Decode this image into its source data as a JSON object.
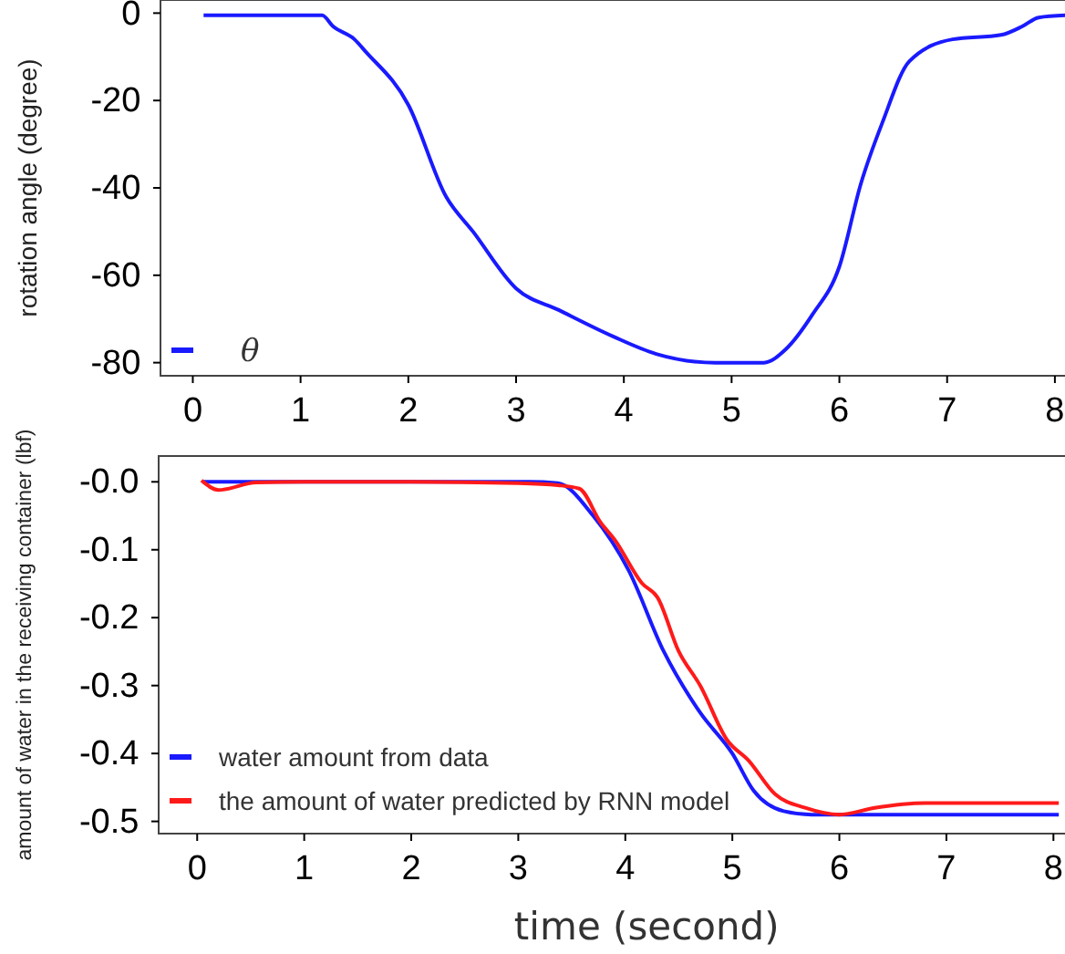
{
  "chart_data": [
    {
      "type": "line",
      "ylabel": "rotation angle (degree)",
      "xlim": [
        -0.3,
        8.5
      ],
      "ylim": [
        -83,
        3
      ],
      "xticks": [
        0,
        1,
        2,
        3,
        4,
        5,
        6,
        7,
        8
      ],
      "yticks": [
        0,
        -20,
        -40,
        -60,
        -80
      ],
      "legend": "bottom left",
      "grid": false,
      "series": [
        {
          "name": "θ",
          "color": "#1a1aff",
          "x": [
            0.1,
            1.2,
            1.3,
            1.5,
            1.6,
            2.0,
            2.35,
            2.6,
            3.0,
            3.4,
            3.9,
            4.3,
            4.85,
            5.3,
            5.5,
            5.75,
            6.0,
            6.2,
            6.4,
            6.65,
            7.05,
            7.5,
            7.7,
            7.85,
            8.1
          ],
          "values": [
            -0.5,
            -0.5,
            -3,
            -6,
            -8.7,
            -21,
            -42,
            -50,
            -63,
            -68,
            -74,
            -78,
            -80,
            -80,
            -77,
            -69,
            -58,
            -39,
            -25,
            -11,
            -6,
            -5,
            -3,
            -1,
            -0.5
          ]
        }
      ]
    },
    {
      "type": "line",
      "ylabel": "amount of water in the receiving container (lbf)",
      "xlabel": "time (second)",
      "xlim": [
        -0.36,
        8.5
      ],
      "ylim": [
        -0.518,
        0.038
      ],
      "xticks": [
        0,
        1,
        2,
        3,
        4,
        5,
        6,
        7,
        8
      ],
      "yticks": [
        {
          "value": 0,
          "label": "-0.0"
        },
        -0.1,
        -0.2,
        -0.3,
        -0.4,
        -0.5
      ],
      "legend": "bottom left",
      "grid": false,
      "series": [
        {
          "name": "water amount from data",
          "color": "#1a1aff",
          "x": [
            0.05,
            1.0,
            2.0,
            3.1,
            3.37,
            3.7,
            4.03,
            4.36,
            4.7,
            5.0,
            5.2,
            5.48,
            5.74,
            7.0,
            8.05
          ],
          "values": [
            0,
            0,
            0,
            0,
            -0.002,
            -0.05,
            -0.13,
            -0.25,
            -0.34,
            -0.4,
            -0.455,
            -0.485,
            -0.49,
            -0.49,
            -0.49
          ]
        },
        {
          "name": "the amount of water predicted by RNN model",
          "color": "#ff1a1a",
          "x": [
            0.04,
            0.2,
            0.55,
            1.0,
            2.0,
            3.0,
            3.37,
            3.57,
            3.77,
            3.9,
            4.16,
            4.3,
            4.5,
            4.7,
            4.95,
            5.15,
            5.4,
            5.68,
            6.0,
            6.33,
            6.8,
            8.05
          ],
          "values": [
            0.002,
            -0.012,
            -0.001,
            0,
            0,
            -0.002,
            -0.005,
            -0.01,
            -0.06,
            -0.085,
            -0.15,
            -0.17,
            -0.25,
            -0.3,
            -0.38,
            -0.41,
            -0.46,
            -0.48,
            -0.49,
            -0.48,
            -0.473,
            -0.473
          ]
        }
      ]
    }
  ]
}
